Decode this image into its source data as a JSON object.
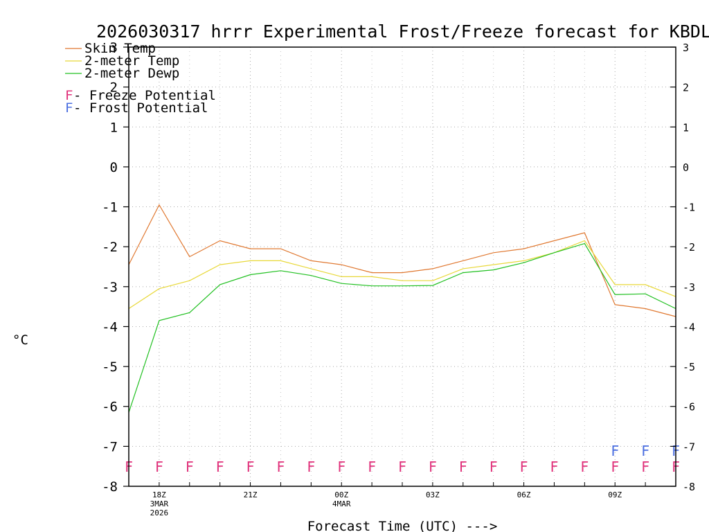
{
  "chart_data": {
    "type": "line",
    "title": "2026030317 hrrr Experimental Frost/Freeze forecast for KBDL",
    "xlabel": "Forecast Time (UTC) --->",
    "ylabel": "°C",
    "ylim": [
      -8,
      3
    ],
    "yticks": [
      -8,
      -7,
      -6,
      -5,
      -4,
      -3,
      -2,
      -1,
      0,
      1,
      2,
      3
    ],
    "x": [
      0,
      1,
      2,
      3,
      4,
      5,
      6,
      7,
      8,
      9,
      10,
      11,
      12,
      13,
      14,
      15,
      16,
      17,
      18
    ],
    "x_tick_labels": [
      {
        "x": 1,
        "lines": [
          "18Z",
          "3MAR",
          "2026"
        ]
      },
      {
        "x": 4,
        "lines": [
          "21Z"
        ]
      },
      {
        "x": 7,
        "lines": [
          "00Z",
          "4MAR"
        ]
      },
      {
        "x": 10,
        "lines": [
          "03Z"
        ]
      },
      {
        "x": 13,
        "lines": [
          "06Z"
        ]
      },
      {
        "x": 16,
        "lines": [
          "09Z"
        ]
      }
    ],
    "grid": true,
    "series": [
      {
        "name": "Skin Temp",
        "color": "#e07830",
        "values": [
          -2.45,
          -0.95,
          -2.25,
          -1.85,
          -2.05,
          -2.05,
          -2.35,
          -2.45,
          -2.65,
          -2.65,
          -2.55,
          -2.35,
          -2.15,
          -2.05,
          -1.85,
          -1.65,
          -3.45,
          -3.55,
          -3.75
        ]
      },
      {
        "name": "2-meter Temp",
        "color": "#e8d838",
        "values": [
          -3.55,
          -3.05,
          -2.85,
          -2.45,
          -2.35,
          -2.35,
          -2.55,
          -2.75,
          -2.75,
          -2.85,
          -2.85,
          -2.55,
          -2.45,
          -2.35,
          -2.15,
          -1.85,
          -2.95,
          -2.95,
          -3.25
        ]
      },
      {
        "name": "2-meter Dewp",
        "color": "#20c020",
        "values": [
          -6.15,
          -3.85,
          -3.65,
          -2.95,
          -2.7,
          -2.6,
          -2.72,
          -2.92,
          -2.98,
          -2.98,
          -2.97,
          -2.65,
          -2.58,
          -2.4,
          -2.15,
          -1.92,
          -3.2,
          -3.18,
          -3.55
        ]
      }
    ],
    "freeze_potential": {
      "label": "F",
      "color": "#e0307a",
      "y": -7.5,
      "x": [
        0,
        1,
        2,
        3,
        4,
        5,
        6,
        7,
        8,
        9,
        10,
        11,
        12,
        13,
        14,
        15,
        16,
        17,
        18
      ]
    },
    "frost_potential": {
      "label": "F",
      "color": "#4a6ee0",
      "y": -7.1,
      "x": [
        16,
        17,
        18
      ]
    },
    "legend": {
      "position": "top-left",
      "series_entries": [
        "Skin Temp",
        "2-meter Temp",
        "2-meter Dewp"
      ],
      "flag_entries": [
        {
          "symbol": "F",
          "text": " - Freeze Potential",
          "color": "#e0307a"
        },
        {
          "symbol": "F",
          "text": " - Frost Potential",
          "color": "#4a6ee0"
        }
      ]
    }
  }
}
